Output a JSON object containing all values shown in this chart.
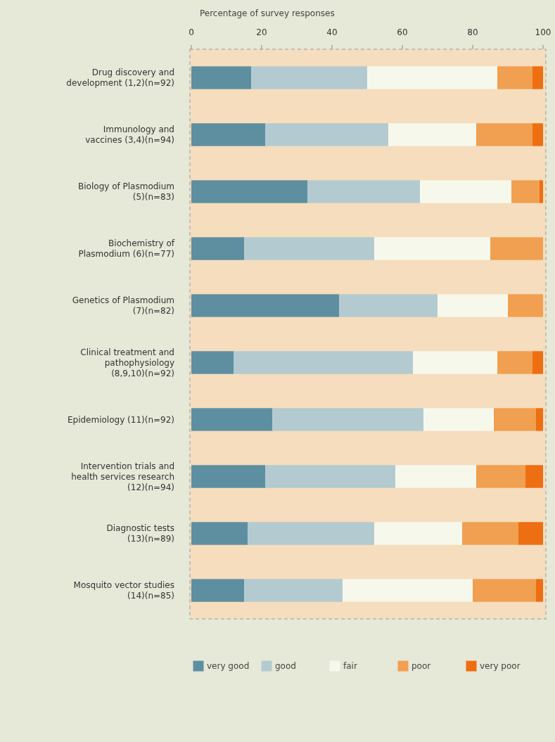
{
  "chart_data": {
    "type": "bar",
    "orientation": "horizontal",
    "stacked": true,
    "xlabel": "Percentage of survey responses",
    "categories": [
      "Drug discovery and\ndevelopment (1,2)(n=92)",
      "Immunology and\nvaccines (3,4)(n=94)",
      "Biology of Plasmodium\n(5)(n=83)",
      "Biochemistry of\nPlasmodium (6)(n=77)",
      "Genetics of Plasmodium\n(7)(n=82)",
      "Clinical treatment and\npathophysiology\n(8,9,10)(n=92)",
      "Epidemiology (11)(n=92)",
      "Intervention trials and\nhealth services research\n(12)(n=94)",
      "Diagnostic tests\n(13)(n=89)",
      "Mosquito vector studies\n(14)(n=85)"
    ],
    "series": [
      {
        "name": "very good",
        "color": "#5e8fa0",
        "values": [
          17,
          21,
          33,
          15,
          42,
          12,
          23,
          21,
          16,
          15
        ]
      },
      {
        "name": "good",
        "color": "#b3cbd0",
        "values": [
          33,
          35,
          32,
          37,
          28,
          51,
          43,
          37,
          36,
          28
        ]
      },
      {
        "name": "fair",
        "color": "#f7f8ec",
        "values": [
          37,
          25,
          26,
          33,
          20,
          24,
          20,
          23,
          25,
          37
        ]
      },
      {
        "name": "poor",
        "color": "#f0a050",
        "values": [
          10,
          16,
          8,
          15,
          10,
          10,
          12,
          14,
          16,
          18
        ]
      },
      {
        "name": "very poor",
        "color": "#ee6e12",
        "values": [
          3,
          3,
          1,
          0,
          0,
          3,
          2,
          5,
          7,
          2
        ]
      }
    ],
    "xlim": [
      0,
      100
    ],
    "xticks": [
      0,
      20,
      40,
      60,
      80,
      100
    ],
    "legend": "bottom"
  }
}
